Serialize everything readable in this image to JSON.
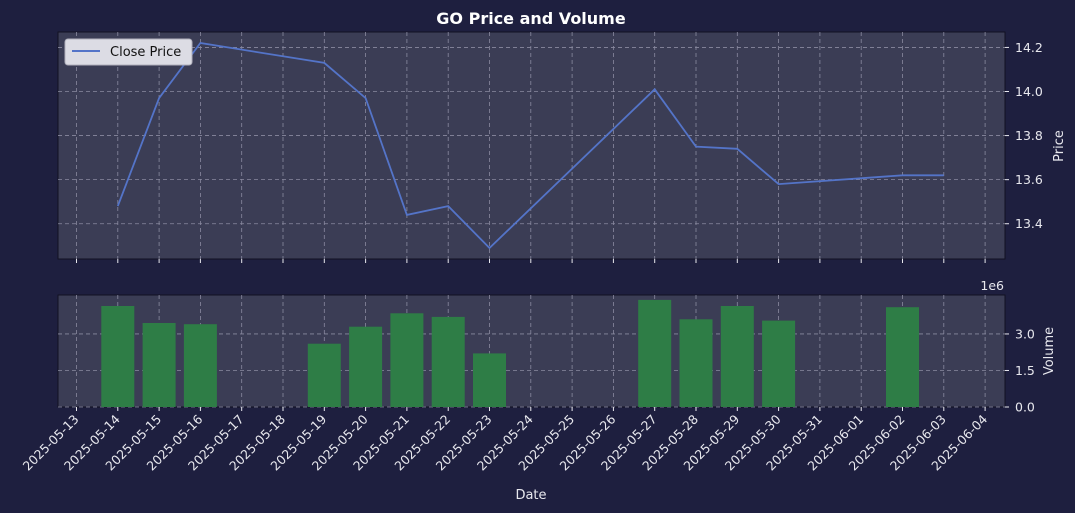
{
  "chart_data": [
    {
      "type": "line",
      "title": "GO Price and Volume",
      "xlabel": "",
      "ylabel": "Price",
      "ylim": [
        13.24,
        14.27
      ],
      "y_ticks": [
        "13.4",
        "13.6",
        "13.8",
        "14.0",
        "14.2"
      ],
      "legend": {
        "position": "top-left",
        "entries": [
          "Close Price"
        ]
      },
      "grid": true,
      "series": [
        {
          "name": "Close Price",
          "color": "#5474c8",
          "points": [
            {
              "x": "2025-05-14",
              "y": 13.48
            },
            {
              "x": "2025-05-15",
              "y": 13.97
            },
            {
              "x": "2025-05-16",
              "y": 14.22
            },
            {
              "x": "2025-05-19",
              "y": 14.13
            },
            {
              "x": "2025-05-20",
              "y": 13.97
            },
            {
              "x": "2025-05-21",
              "y": 13.44
            },
            {
              "x": "2025-05-22",
              "y": 13.48
            },
            {
              "x": "2025-05-23",
              "y": 13.29
            },
            {
              "x": "2025-05-27",
              "y": 14.01
            },
            {
              "x": "2025-05-28",
              "y": 13.75
            },
            {
              "x": "2025-05-29",
              "y": 13.74
            },
            {
              "x": "2025-05-30",
              "y": 13.58
            },
            {
              "x": "2025-06-02",
              "y": 13.62
            },
            {
              "x": "2025-06-03",
              "y": 13.62
            }
          ]
        }
      ]
    },
    {
      "type": "bar",
      "xlabel": "Date",
      "ylabel": "Volume",
      "scale_label": "1e6",
      "ylim": [
        0,
        4.6
      ],
      "y_ticks": [
        "0.0",
        "1.5",
        "3.0"
      ],
      "grid": true,
      "bar_color": "#2e7d46",
      "bars": [
        {
          "x": "2025-05-14",
          "value": 4.15
        },
        {
          "x": "2025-05-15",
          "value": 3.45
        },
        {
          "x": "2025-05-16",
          "value": 3.4
        },
        {
          "x": "2025-05-19",
          "value": 2.6
        },
        {
          "x": "2025-05-20",
          "value": 3.3
        },
        {
          "x": "2025-05-21",
          "value": 3.85
        },
        {
          "x": "2025-05-22",
          "value": 3.7
        },
        {
          "x": "2025-05-23",
          "value": 2.2
        },
        {
          "x": "2025-05-27",
          "value": 4.4
        },
        {
          "x": "2025-05-28",
          "value": 3.6
        },
        {
          "x": "2025-05-29",
          "value": 4.15
        },
        {
          "x": "2025-05-30",
          "value": 3.55
        },
        {
          "x": "2025-06-02",
          "value": 4.1
        }
      ],
      "x_ticks": [
        "2025-05-13",
        "2025-05-14",
        "2025-05-15",
        "2025-05-16",
        "2025-05-17",
        "2025-05-18",
        "2025-05-19",
        "2025-05-20",
        "2025-05-21",
        "2025-05-22",
        "2025-05-23",
        "2025-05-24",
        "2025-05-25",
        "2025-05-26",
        "2025-05-27",
        "2025-05-28",
        "2025-05-29",
        "2025-05-30",
        "2025-05-31",
        "2025-06-01",
        "2025-06-02",
        "2025-06-03",
        "2025-06-04"
      ]
    }
  ],
  "colors": {
    "figure_bg": "#1e1f3f",
    "axes_bg": "#3b3d55",
    "grid": "#8a8aa0",
    "text": "#e8e8ee"
  }
}
